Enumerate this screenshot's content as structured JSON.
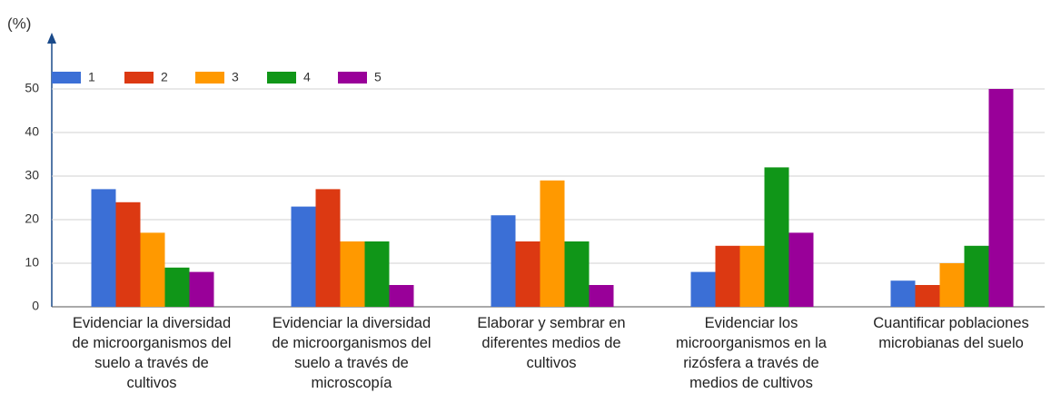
{
  "chart_data": {
    "type": "bar",
    "y_label": "(%)",
    "categories": [
      "Evidenciar la diversidad de microorganismos del suelo a través de cultivos",
      "Evidenciar la diversidad de microorganismos del suelo a través de microscopía",
      "Elaborar y sembrar en diferentes medios de cultivos",
      "Evidenciar los microorganismos en la rizósfera a través de medios de cultivos",
      "Cuantificar poblaciones microbianas del suelo"
    ],
    "series": [
      {
        "name": "1",
        "color": "#3b6fd6",
        "values": [
          27,
          23,
          21,
          8,
          6
        ]
      },
      {
        "name": "2",
        "color": "#dc3912",
        "values": [
          24,
          27,
          15,
          14,
          5
        ]
      },
      {
        "name": "3",
        "color": "#ff9900",
        "values": [
          17,
          15,
          29,
          14,
          10
        ]
      },
      {
        "name": "4",
        "color": "#109618",
        "values": [
          9,
          15,
          15,
          32,
          14
        ]
      },
      {
        "name": "5",
        "color": "#990099",
        "values": [
          8,
          5,
          5,
          17,
          50
        ]
      }
    ],
    "ylim": [
      0,
      50
    ],
    "yticks": [
      0,
      10,
      20,
      30,
      40,
      50
    ],
    "grid": true,
    "legend": "top-left"
  }
}
